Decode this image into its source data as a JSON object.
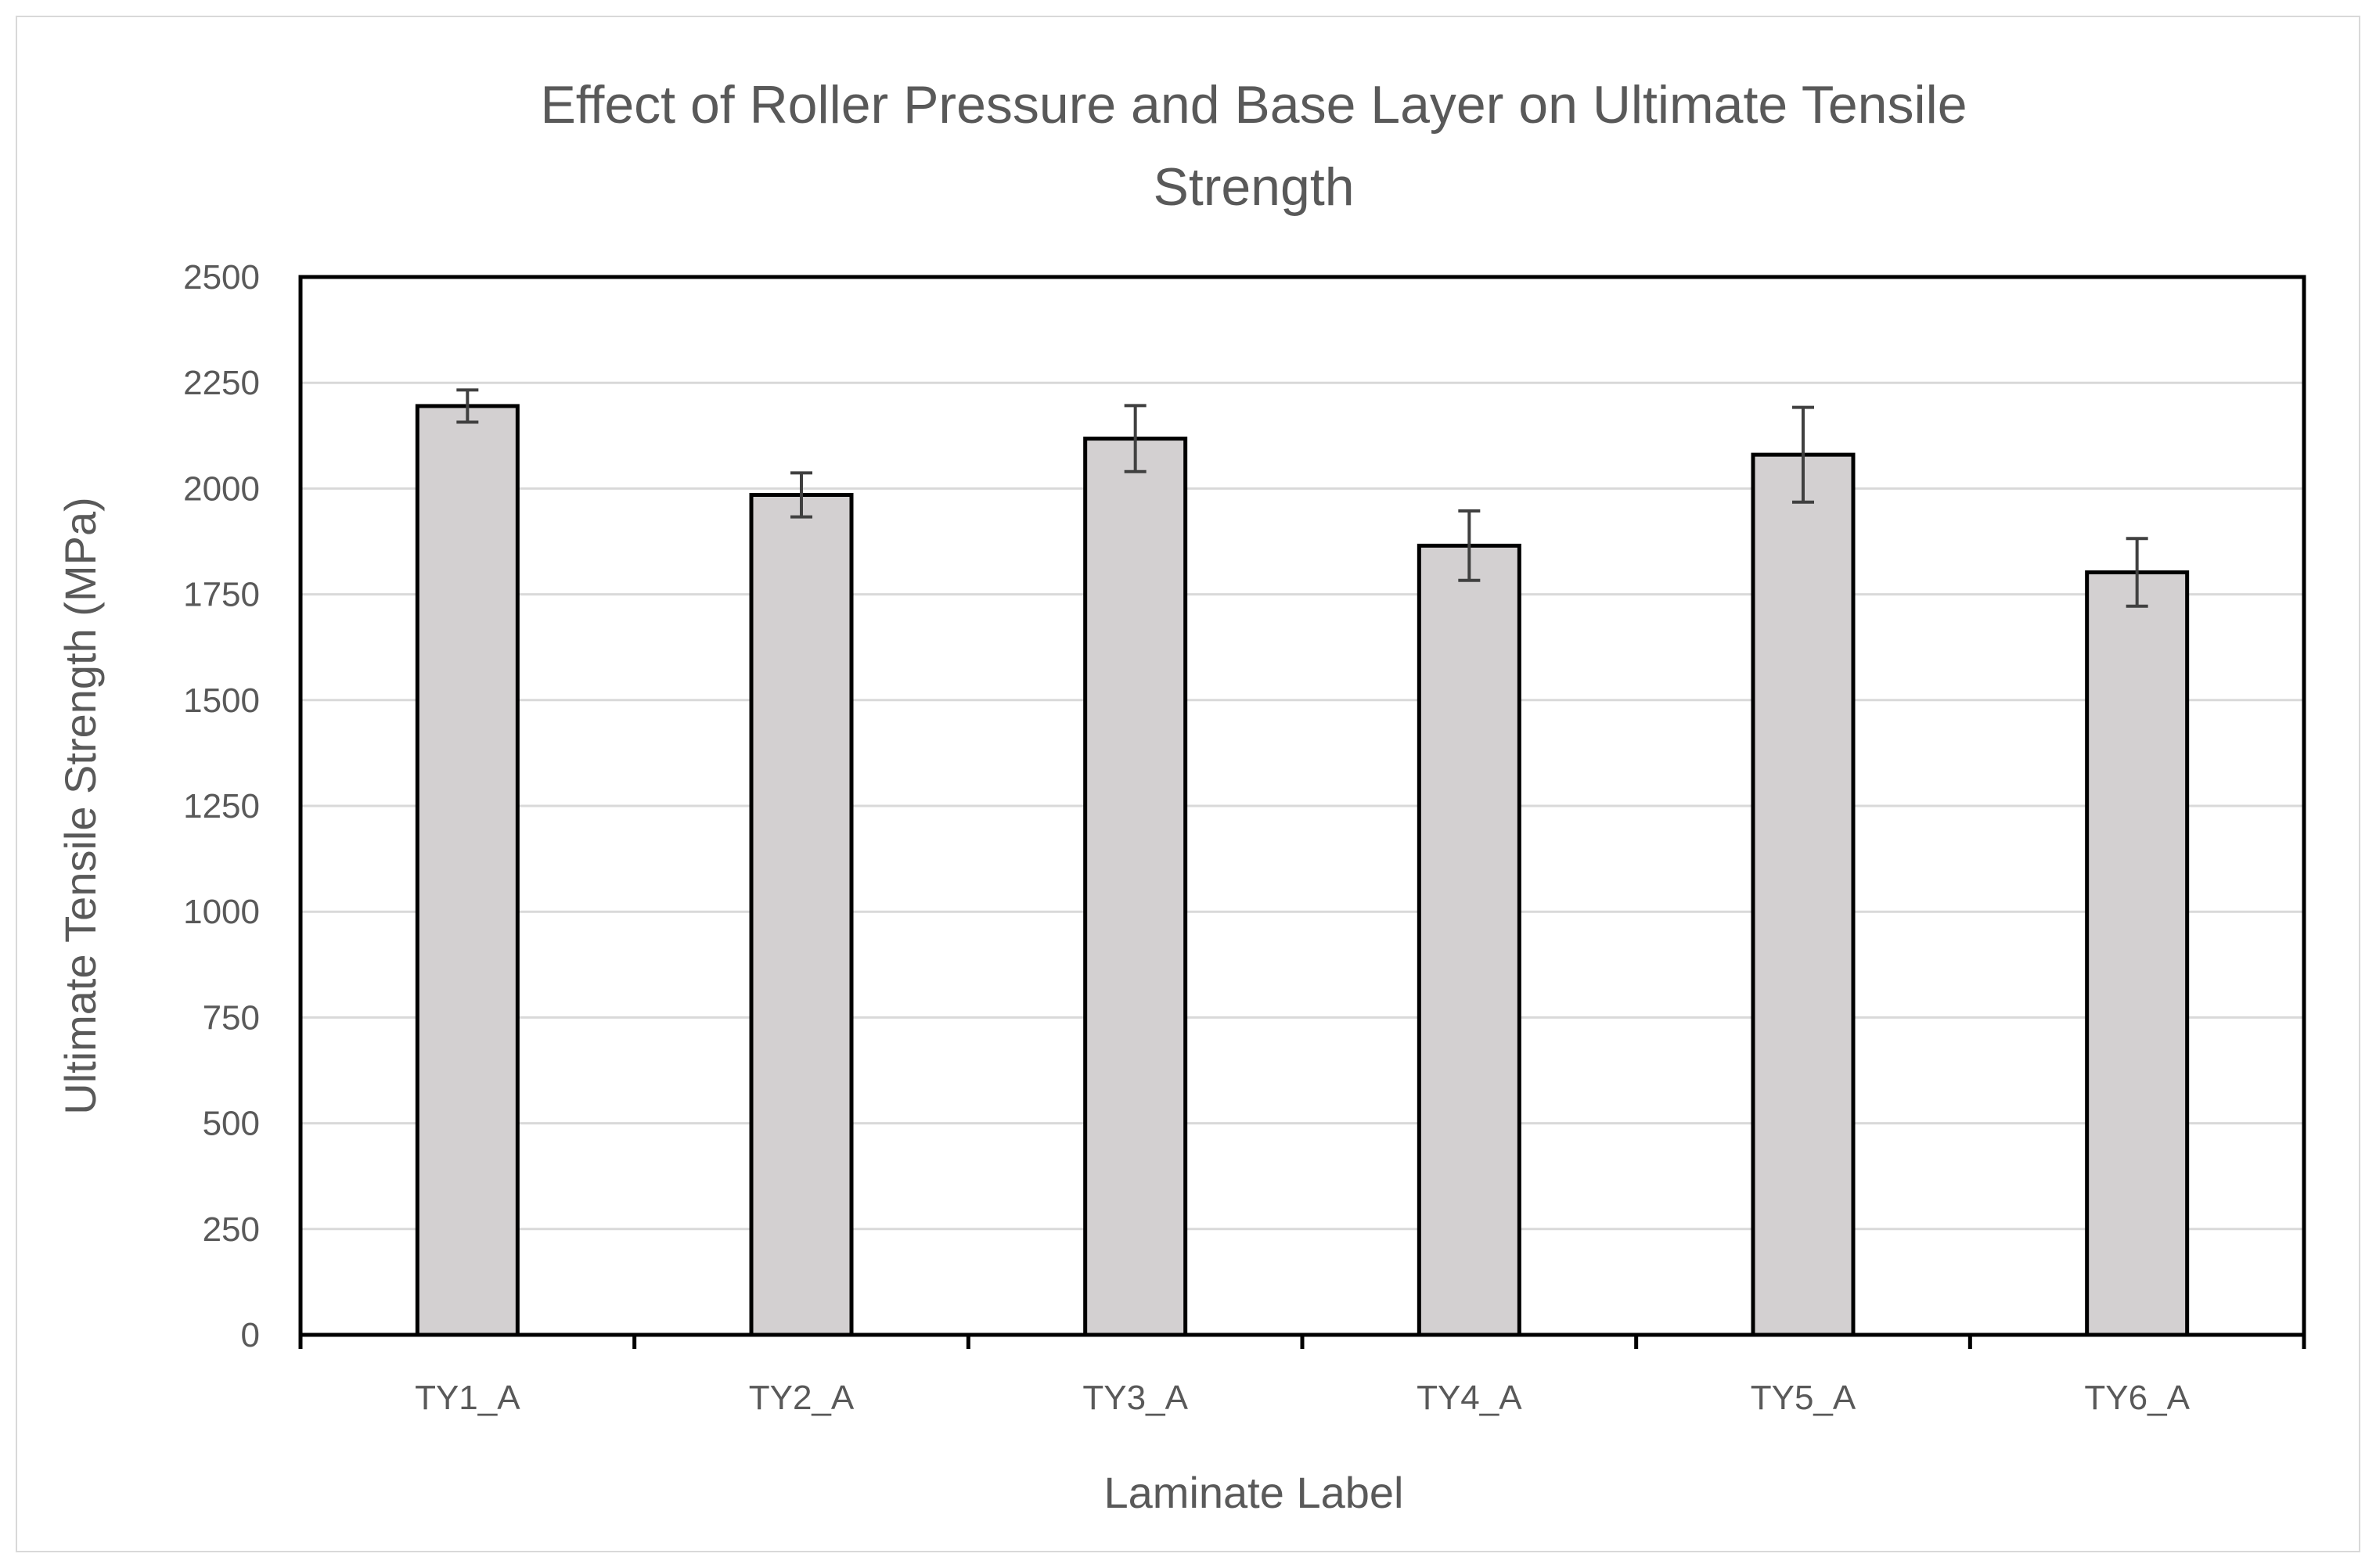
{
  "chart_data": {
    "type": "bar",
    "title_lines": [
      "Effect of Roller Pressure and Base Layer on Ultimate Tensile",
      "Strength"
    ],
    "xlabel": "Laminate Label",
    "ylabel": "Ultimate Tensile Strength (MPa)",
    "categories": [
      "TY1_A",
      "TY2_A",
      "TY3_A",
      "TY4_A",
      "TY5_A",
      "TY6_A"
    ],
    "values": [
      2195,
      1985,
      2118,
      1865,
      2080,
      1802
    ],
    "error": [
      38,
      52,
      78,
      82,
      112,
      80
    ],
    "ylim": [
      0,
      2500
    ],
    "yticks": [
      "0",
      "250",
      "500",
      "750",
      "1000",
      "1250",
      "1500",
      "1750",
      "2000",
      "2250",
      "2500"
    ],
    "grid": true,
    "legend": "none",
    "colors": {
      "bar_fill": "#d3d0d1",
      "bar_stroke": "#000000",
      "gridline": "#d9d9d9",
      "error_bar": "#404040",
      "text": "#595959"
    }
  }
}
